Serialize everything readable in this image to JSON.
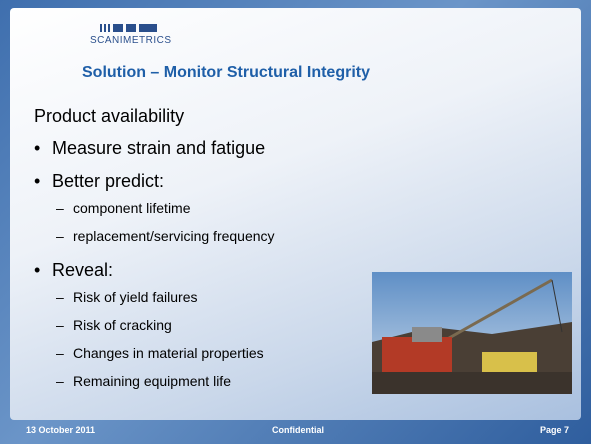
{
  "header": {
    "logo": "SCANIMETRICS",
    "title": "Solution – Monitor Structural Integrity"
  },
  "body": {
    "heading": "Product availability",
    "bullets": [
      {
        "text": "Measure strain and fatigue"
      },
      {
        "text": "Better predict:",
        "items": [
          "component lifetime",
          "replacement/servicing frequency"
        ]
      },
      {
        "text": "Reveal:",
        "items": [
          "Risk of yield failures",
          "Risk of cracking",
          "Changes in material properties",
          "Remaining equipment life"
        ]
      }
    ]
  },
  "footer": {
    "date": "13 October 2011",
    "label": "Confidential",
    "page": "Page 7"
  }
}
